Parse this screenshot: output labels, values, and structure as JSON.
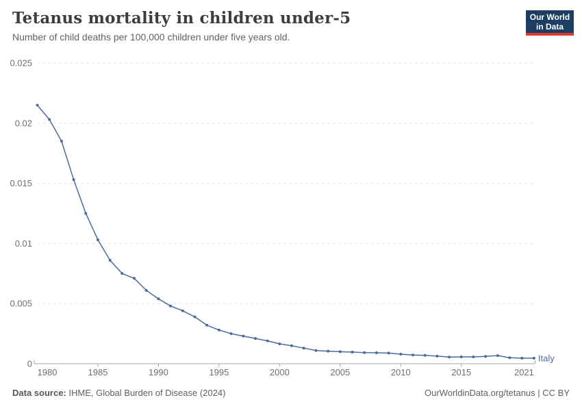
{
  "header": {
    "title": "Tetanus mortality in children under-5",
    "subtitle": "Number of child deaths per 100,000 children under five years old.",
    "logo": {
      "line1": "Our World",
      "line2": "in Data",
      "bg_color": "#1d3d63",
      "bar_color": "#d93a2b"
    }
  },
  "chart_data": {
    "type": "line",
    "title": "Tetanus mortality in children under-5",
    "xlabel": "",
    "ylabel": "",
    "xlim": [
      1980,
      2021
    ],
    "ylim": [
      0,
      0.025
    ],
    "grid": "horizontal-dotted",
    "legend_position": "end-of-line",
    "x_ticks": {
      "values": [
        1980,
        1985,
        1990,
        1995,
        2000,
        2005,
        2010,
        2015,
        2021
      ],
      "labels": [
        "1980",
        "1985",
        "1990",
        "1995",
        "2000",
        "2005",
        "2010",
        "2015",
        "2021"
      ]
    },
    "y_ticks": {
      "values": [
        0,
        0.005,
        0.01,
        0.015,
        0.02,
        0.025
      ],
      "labels": [
        "0",
        "0.005",
        "0.01",
        "0.015",
        "0.02",
        "0.025"
      ]
    },
    "series": [
      {
        "name": "Italy",
        "color": "#4C6A9C",
        "x": [
          1980,
          1981,
          1982,
          1983,
          1984,
          1985,
          1986,
          1987,
          1988,
          1989,
          1990,
          1991,
          1992,
          1993,
          1994,
          1995,
          1996,
          1997,
          1998,
          1999,
          2000,
          2001,
          2002,
          2003,
          2004,
          2005,
          2006,
          2007,
          2008,
          2009,
          2010,
          2011,
          2012,
          2013,
          2014,
          2015,
          2016,
          2017,
          2018,
          2019,
          2020,
          2021
        ],
        "values": [
          0.0215,
          0.0203,
          0.0185,
          0.0153,
          0.0125,
          0.0103,
          0.0086,
          0.0075,
          0.0071,
          0.0061,
          0.0054,
          0.0048,
          0.0044,
          0.0039,
          0.0032,
          0.0028,
          0.0025,
          0.0023,
          0.0021,
          0.0019,
          0.00165,
          0.0015,
          0.0013,
          0.0011,
          0.00105,
          0.001,
          0.00097,
          0.00093,
          0.00091,
          0.00089,
          0.0008,
          0.00073,
          0.0007,
          0.00063,
          0.00056,
          0.00057,
          0.00057,
          0.00061,
          0.00068,
          0.0005,
          0.00046,
          0.00046
        ]
      }
    ]
  },
  "footer": {
    "source_label": "Data source:",
    "source_text": " IHME, Global Burden of Disease (2024)",
    "credit": "OurWorldinData.org/tetanus | CC BY"
  },
  "colors": {
    "line": "#4C6A9C",
    "title_text": "#3d3d3d",
    "tick_text": "#6e6e6e",
    "gridline": "#dcdcdc",
    "axis": "#a6a6a6"
  }
}
